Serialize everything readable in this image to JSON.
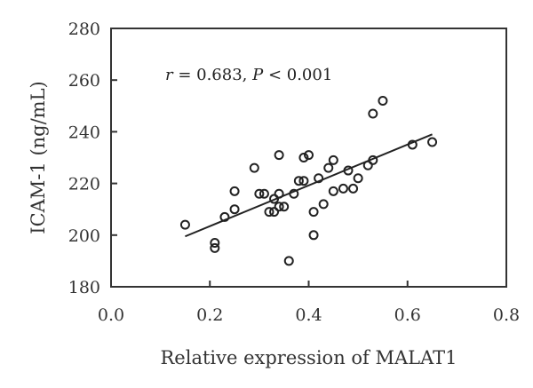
{
  "chart_data": {
    "type": "scatter",
    "xlabel": "Relative expression of MALAT1",
    "ylabel": "ICAM-1 (ng/mL)",
    "xlim": [
      0.0,
      0.8
    ],
    "ylim": [
      180,
      280
    ],
    "x_ticks": [
      "0.0",
      "0.2",
      "0.4",
      "0.6",
      "0.8"
    ],
    "y_ticks": [
      "180",
      "200",
      "220",
      "240",
      "260",
      "280"
    ],
    "grid": false,
    "annotation": {
      "r_label": "r",
      "r_text": " = 0.683, ",
      "p_label": "P",
      "p_text": " < 0.001"
    },
    "trendline": {
      "x": [
        0.15,
        0.65
      ],
      "y": [
        199.5,
        239.0
      ]
    },
    "marker_color": "#222222",
    "points": [
      {
        "x": 0.15,
        "y": 204
      },
      {
        "x": 0.21,
        "y": 197
      },
      {
        "x": 0.21,
        "y": 195
      },
      {
        "x": 0.23,
        "y": 207
      },
      {
        "x": 0.25,
        "y": 210
      },
      {
        "x": 0.25,
        "y": 217
      },
      {
        "x": 0.29,
        "y": 226
      },
      {
        "x": 0.3,
        "y": 216
      },
      {
        "x": 0.31,
        "y": 216
      },
      {
        "x": 0.32,
        "y": 209
      },
      {
        "x": 0.33,
        "y": 209
      },
      {
        "x": 0.33,
        "y": 214
      },
      {
        "x": 0.34,
        "y": 211
      },
      {
        "x": 0.34,
        "y": 216
      },
      {
        "x": 0.34,
        "y": 231
      },
      {
        "x": 0.35,
        "y": 211
      },
      {
        "x": 0.36,
        "y": 190
      },
      {
        "x": 0.37,
        "y": 216
      },
      {
        "x": 0.38,
        "y": 221
      },
      {
        "x": 0.39,
        "y": 221
      },
      {
        "x": 0.39,
        "y": 230
      },
      {
        "x": 0.4,
        "y": 231
      },
      {
        "x": 0.41,
        "y": 209
      },
      {
        "x": 0.41,
        "y": 200
      },
      {
        "x": 0.42,
        "y": 222
      },
      {
        "x": 0.43,
        "y": 212
      },
      {
        "x": 0.44,
        "y": 226
      },
      {
        "x": 0.45,
        "y": 217
      },
      {
        "x": 0.45,
        "y": 229
      },
      {
        "x": 0.47,
        "y": 218
      },
      {
        "x": 0.48,
        "y": 225
      },
      {
        "x": 0.49,
        "y": 218
      },
      {
        "x": 0.5,
        "y": 222
      },
      {
        "x": 0.52,
        "y": 227
      },
      {
        "x": 0.53,
        "y": 229
      },
      {
        "x": 0.53,
        "y": 247
      },
      {
        "x": 0.55,
        "y": 252
      },
      {
        "x": 0.61,
        "y": 235
      },
      {
        "x": 0.65,
        "y": 236
      }
    ]
  }
}
